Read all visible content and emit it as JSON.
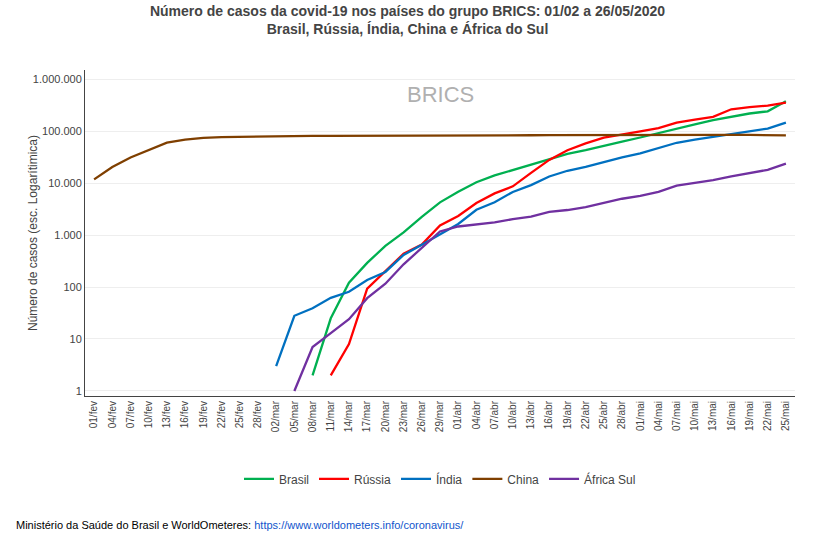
{
  "chart_data": {
    "type": "line",
    "title": "Número de casos da covid-19 nos países do grupo BRICS: 01/02 a 26/05/2020",
    "subtitle": "Brasil, Rússia, Índia, China e África do Sul",
    "y_label": "Número de casos (esc. Logarítimica)",
    "annotations": [
      {
        "text": "BRICS",
        "color": "#b0b0b0"
      },
      {
        "text": "Ministério da Saúde do Brasil e WorldOmeteres: "
      },
      {
        "text": "https://www.worldometers.info/coronavirus/",
        "color": "#1155CC"
      }
    ],
    "categories": [
      "01/fev",
      "04/fev",
      "07/fev",
      "10/fev",
      "13/fev",
      "16/fev",
      "19/fev",
      "22/fev",
      "25/fev",
      "28/fev",
      "02/mar",
      "05/mar",
      "08/mar",
      "11/mar",
      "14/mar",
      "17/mar",
      "20/mar",
      "23/mar",
      "26/mar",
      "29/mar",
      "01/abr",
      "04/abr",
      "07/abr",
      "10/abr",
      "13/abr",
      "16/abr",
      "19/abr",
      "22/abr",
      "25/abr",
      "28/abr",
      "01/mai",
      "04/mai",
      "07/mai",
      "10/mai",
      "13/mai",
      "16/mai",
      "19/mai",
      "22/mai",
      "25/mai"
    ],
    "series": [
      {
        "name": "Brasil",
        "color": "#00B050",
        "values": [
          null,
          null,
          null,
          null,
          null,
          null,
          null,
          null,
          null,
          null,
          null,
          null,
          2,
          25,
          121,
          291,
          621,
          1128,
          2247,
          4256,
          6836,
          10360,
          14034,
          17857,
          22169,
          28320,
          36599,
          43079,
          52995,
          63100,
          75366,
          91589,
          114715,
          135106,
          162699,
          190137,
          218223,
          240906,
          374898
        ]
      },
      {
        "name": "Rússia",
        "color": "#FF0000",
        "values": [
          null,
          null,
          null,
          null,
          null,
          null,
          null,
          null,
          null,
          null,
          null,
          null,
          null,
          2,
          8,
          93,
          199,
          438,
          658,
          1534,
          2337,
          4149,
          6343,
          8672,
          15770,
          27938,
          42853,
          57999,
          74588,
          87147,
          99399,
          114431,
          145268,
          165929,
          187859,
          262843,
          290678,
          308705,
          353427
        ]
      },
      {
        "name": "Índia",
        "color": "#0070C0",
        "values": [
          null,
          null,
          null,
          null,
          null,
          null,
          null,
          null,
          null,
          null,
          3,
          28,
          39,
          62,
          81,
          137,
          195,
          415,
          649,
          1024,
          1637,
          3072,
          4281,
          6761,
          9152,
          13387,
          17265,
          20471,
          25683,
          31332,
          37336,
          46711,
          59695,
          68484,
          78003,
          85940,
          101139,
          112028,
          145380
        ]
      },
      {
        "name": "China",
        "color": "#7F3F00",
        "values": [
          11791,
          20438,
          31161,
          42638,
          59804,
          68500,
          74185,
          76936,
          78064,
          79251,
          80026,
          80270,
          80651,
          80932,
          80948,
          81033,
          81093,
          81498,
          81591,
          81394,
          82631,
          83157,
          82710,
          82930,
          83306,
          83760,
          84110,
          84279,
          84393,
          84341,
          84373,
          84385,
          84393,
          84398,
          84464,
          84579,
          84516,
          84579,
          82995
        ]
      },
      {
        "name": "África Sul",
        "color": "#7030A0",
        "values": [
          null,
          null,
          null,
          null,
          null,
          null,
          null,
          null,
          null,
          null,
          null,
          1,
          7,
          13,
          24,
          61,
          116,
          274,
          554,
          1170,
          1462,
          1585,
          1749,
          2028,
          2272,
          2783,
          3034,
          3465,
          4220,
          4996,
          5647,
          6783,
          8895,
          10015,
          11350,
          13524,
          15515,
          18003,
          23615
        ]
      }
    ],
    "log": "y",
    "ylim": [
      0.8,
      1500000
    ],
    "yticks": [
      1,
      10,
      100,
      {
        "value": 1000,
        "label": "1.000"
      },
      {
        "value": 10000,
        "label": "10.000"
      },
      {
        "value": 100000,
        "label": "100.000"
      },
      {
        "value": 1000000,
        "label": "1.000.000"
      }
    ],
    "grid": true,
    "legend": "bottom"
  }
}
